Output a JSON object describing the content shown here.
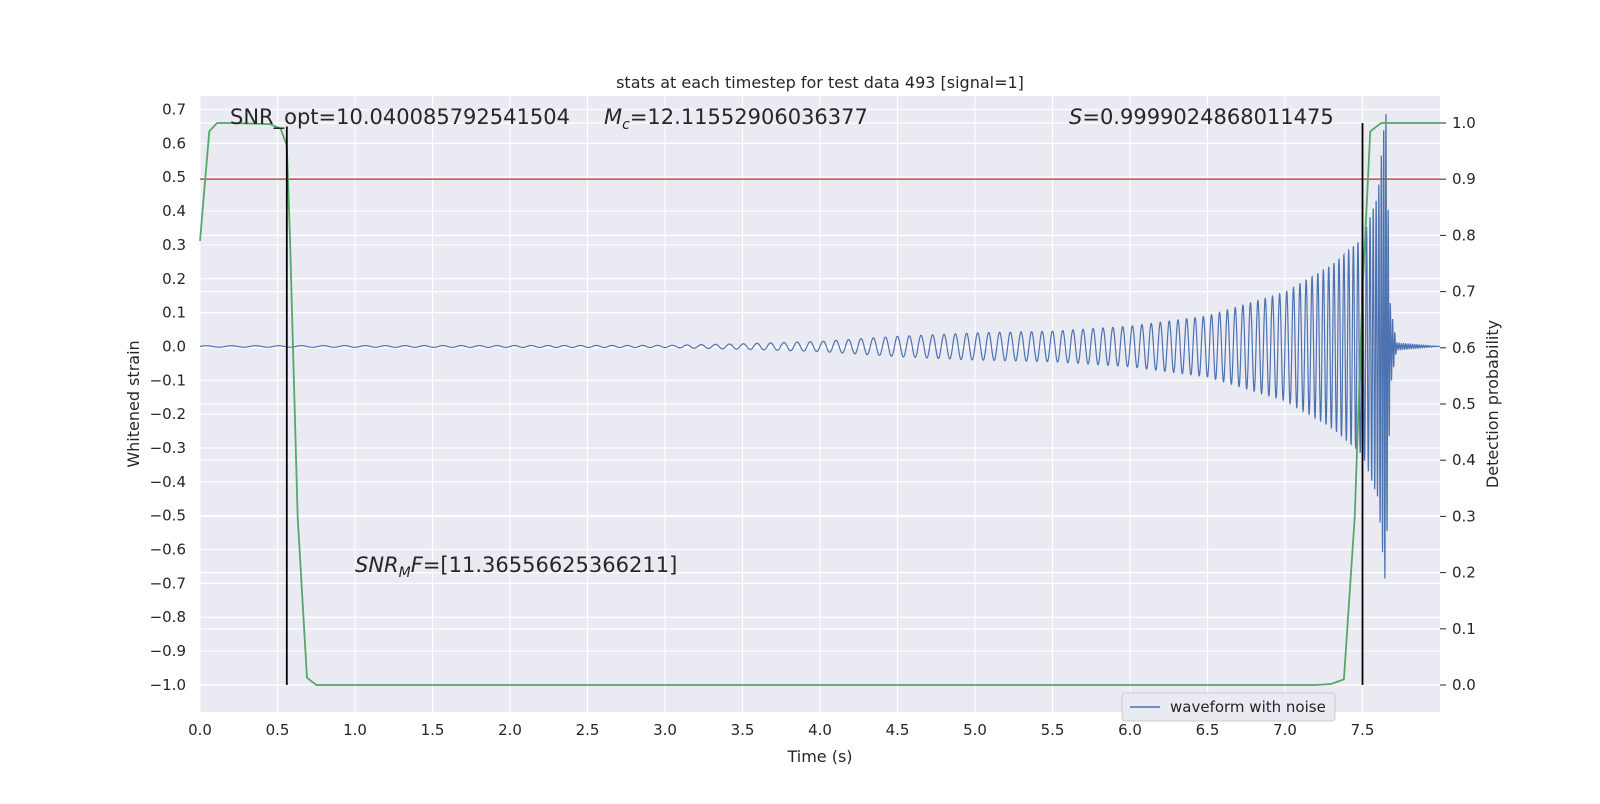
{
  "chart_data": {
    "type": "line",
    "title": "stats at each timestep for test data 493 [signal=1]",
    "xlabel": "Time (s)",
    "ylabel_left": "Whitened strain",
    "ylabel_right": "Detection probability",
    "xlim": [
      0.0,
      8.0
    ],
    "ylim_left": [
      -1.08,
      0.74
    ],
    "ylim_right": [
      -0.048,
      1.048
    ],
    "x_ticks": [
      "0.0",
      "0.5",
      "1.0",
      "1.5",
      "2.0",
      "2.5",
      "3.0",
      "3.5",
      "4.0",
      "4.5",
      "5.0",
      "5.5",
      "6.0",
      "6.5",
      "7.0",
      "7.5"
    ],
    "y_ticks_left": [
      "0.7",
      "0.6",
      "0.5",
      "0.4",
      "0.3",
      "0.2",
      "0.1",
      "0.0",
      "−0.1",
      "−0.2",
      "−0.3",
      "−0.4",
      "−0.5",
      "−0.6",
      "−0.7",
      "−0.8",
      "−0.9",
      "−1.0"
    ],
    "y_ticks_right": [
      "1.0",
      "0.9",
      "0.8",
      "0.7",
      "0.6",
      "0.5",
      "0.4",
      "0.3",
      "0.2",
      "0.1",
      "0.0"
    ],
    "grid": true,
    "legend_position": "lower-right",
    "series": [
      {
        "name": "waveform with noise",
        "axis": "left",
        "color": "#4c72b0",
        "description": "chirp waveform: near-zero until ~3.3 s, amplitude growing to ~0.3 near 7.5 s, merger peak ~0.7 at 7.65 s, ringdown to 0",
        "envelope": [
          [
            0.0,
            0.002
          ],
          [
            3.0,
            0.003
          ],
          [
            3.5,
            0.008
          ],
          [
            4.0,
            0.015
          ],
          [
            4.5,
            0.03
          ],
          [
            5.0,
            0.04
          ],
          [
            5.5,
            0.045
          ],
          [
            6.0,
            0.06
          ],
          [
            6.5,
            0.09
          ],
          [
            7.0,
            0.16
          ],
          [
            7.3,
            0.24
          ],
          [
            7.5,
            0.32
          ],
          [
            7.6,
            0.45
          ],
          [
            7.65,
            0.72
          ],
          [
            7.68,
            0.12
          ],
          [
            7.72,
            0.01
          ],
          [
            8.0,
            0.0
          ]
        ],
        "frequency_hz": [
          [
            0.0,
            6.0
          ],
          [
            4.0,
            12.0
          ],
          [
            6.0,
            16.0
          ],
          [
            7.0,
            22.0
          ],
          [
            7.5,
            35.0
          ],
          [
            7.65,
            70.0
          ]
        ]
      },
      {
        "name": "",
        "axis": "right",
        "color": "#55a868",
        "x": [
          0.0,
          0.06,
          0.11,
          0.2,
          0.45,
          0.52,
          0.56,
          0.58,
          0.63,
          0.69,
          0.75,
          0.8,
          7.2,
          7.3,
          7.38,
          7.45,
          7.5,
          7.55,
          7.62,
          7.7,
          8.0
        ],
        "y": [
          0.79,
          0.985,
          1.0,
          1.0,
          0.998,
          0.99,
          0.96,
          0.8,
          0.3,
          0.013,
          0.0,
          0.0,
          0.0,
          0.002,
          0.01,
          0.3,
          0.7,
          0.985,
          1.0,
          1.0,
          1.0
        ]
      }
    ],
    "threshold": {
      "axis": "right",
      "value": 0.9,
      "color": "#c44e52"
    },
    "vertical_markers": [
      {
        "x": 0.56,
        "y_top": 0.65
      },
      {
        "x": 7.5,
        "y_top": 0.66
      }
    ],
    "annotations": {
      "snr_opt": "SNR_opt=10.040085792541504",
      "mc_symbol": "M",
      "mc_sub": "c",
      "mc_value": "=12.11552906036377",
      "s_symbol": "S",
      "s_value": "=0.9999024868011475",
      "snr_mf_symbol": "SNR",
      "snr_mf_sub": "M",
      "snr_mf_symbol2": "F",
      "snr_mf_value": "=[11.36556625366211]"
    },
    "colors": {
      "plot_background": "#eaeaf2",
      "grid": "#ffffff",
      "marker": "#000000"
    }
  }
}
